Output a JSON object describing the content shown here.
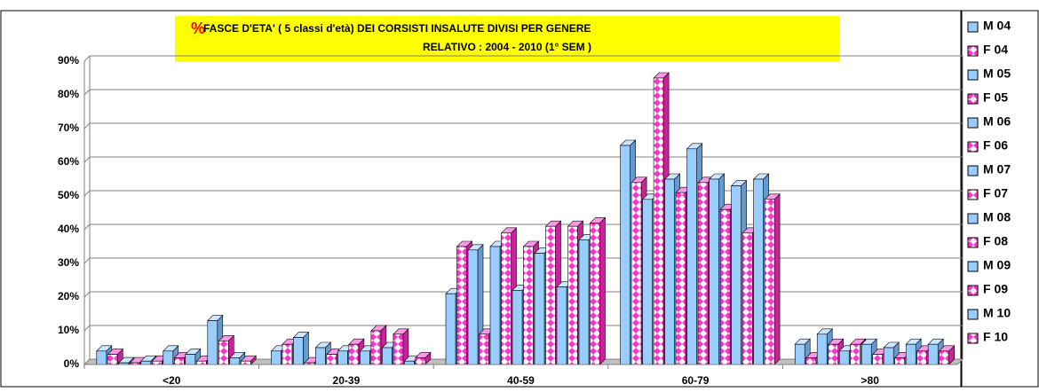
{
  "chart_data": {
    "type": "bar3d",
    "title_mark": "%",
    "title": "FASCE  D'ETA' ( 5 classi d'età)  DEI CORSISTI INSALUTE DIVISI PER GENERE",
    "subtitle": "RELATIVO :    2004 - 2010 (1° SEM )",
    "categories": [
      "<20",
      "20-39",
      "40-59",
      "60-79",
      ">80"
    ],
    "ylim": [
      0,
      90
    ],
    "yticks": [
      {
        "value": 0,
        "label": "0%"
      },
      {
        "value": 10,
        "label": "10%"
      },
      {
        "value": 20,
        "label": "20%"
      },
      {
        "value": 30,
        "label": "30%"
      },
      {
        "value": 40,
        "label": "40%"
      },
      {
        "value": 50,
        "label": "50%"
      },
      {
        "value": 60,
        "label": "60%"
      },
      {
        "value": 70,
        "label": "70%"
      },
      {
        "value": 80,
        "label": "80%"
      },
      {
        "value": 90,
        "label": "90%"
      }
    ],
    "grid": true,
    "legend": "right",
    "series": [
      {
        "name": "M 04",
        "color": "#99ccff",
        "pattern": "solid",
        "values": [
          4,
          4,
          21,
          65,
          6
        ]
      },
      {
        "name": "F 04",
        "color": "#ff33cc",
        "pattern": "checker",
        "values": [
          3,
          6,
          35,
          54,
          2
        ]
      },
      {
        "name": "M 05",
        "color": "#99ccff",
        "pattern": "solid",
        "values": [
          0.5,
          8,
          34,
          49,
          9
        ]
      },
      {
        "name": "F 05",
        "color": "#ff33cc",
        "pattern": "checker",
        "values": [
          0.5,
          0.5,
          9,
          85,
          6
        ]
      },
      {
        "name": "M 06",
        "color": "#99ccff",
        "pattern": "solid",
        "values": [
          1,
          5,
          35,
          55,
          4
        ]
      },
      {
        "name": "F 06",
        "color": "#ff33cc",
        "pattern": "checker",
        "values": [
          1,
          3,
          39,
          51,
          6
        ]
      },
      {
        "name": "M 07",
        "color": "#99ccff",
        "pattern": "solid",
        "values": [
          4,
          4,
          22,
          64,
          6
        ]
      },
      {
        "name": "F 07",
        "color": "#ff33cc",
        "pattern": "checker",
        "values": [
          2,
          6,
          35,
          54,
          3
        ]
      },
      {
        "name": "M 08",
        "color": "#99ccff",
        "pattern": "solid",
        "values": [
          3,
          4,
          33,
          55,
          5
        ]
      },
      {
        "name": "F 08",
        "color": "#ff33cc",
        "pattern": "checker",
        "values": [
          1,
          10,
          41,
          46,
          2
        ]
      },
      {
        "name": "M 09",
        "color": "#99ccff",
        "pattern": "solid",
        "values": [
          13,
          5,
          23,
          53,
          6
        ]
      },
      {
        "name": "F 09",
        "color": "#ff33cc",
        "pattern": "checker",
        "values": [
          7,
          9,
          41,
          39,
          4
        ]
      },
      {
        "name": "M 10",
        "color": "#99ccff",
        "pattern": "solid",
        "values": [
          2,
          1,
          37,
          55,
          6
        ]
      },
      {
        "name": "F 10",
        "color": "#ff33cc",
        "pattern": "checker",
        "values": [
          1,
          2,
          42,
          49,
          4
        ]
      }
    ]
  }
}
